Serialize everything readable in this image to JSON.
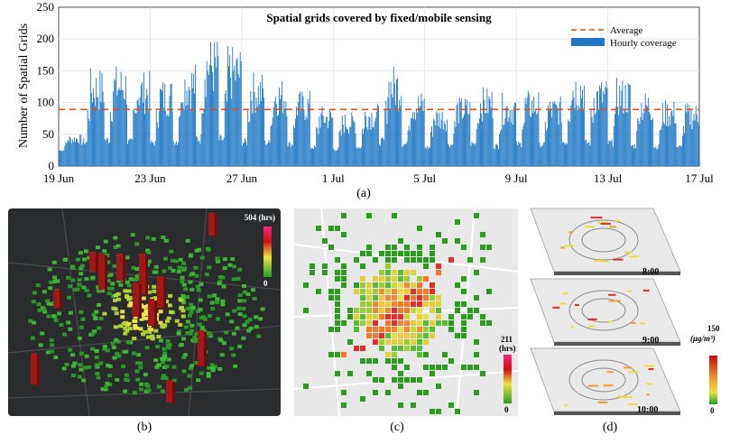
{
  "chart_data": {
    "type": "bar",
    "title": "Spatial grids covered by fixed/mobile sensing",
    "xlabel": "",
    "ylabel": "Number of Spatial Grids",
    "ylim": [
      0,
      250
    ],
    "yticks": [
      0,
      50,
      100,
      150,
      200,
      250
    ],
    "xtick_labels": [
      "19 Jun",
      "23 Jun",
      "27 Jun",
      "1 Jul",
      "5 Jul",
      "9 Jul",
      "13 Jul",
      "17 Jul"
    ],
    "xtick_days": [
      0,
      4,
      8,
      12,
      16,
      20,
      24,
      28
    ],
    "grid": true,
    "legend_position": "top-right",
    "legend": {
      "average": "Average",
      "hourly": "Hourly coverage"
    },
    "average": 89,
    "daily_peaks": [
      50,
      155,
      160,
      150,
      140,
      165,
      205,
      190,
      150,
      140,
      120,
      95,
      85,
      100,
      160,
      120,
      95,
      110,
      125,
      115,
      120,
      110,
      155,
      140,
      140,
      120,
      105,
      100,
      60
    ],
    "daily_troughs": [
      22,
      25,
      28,
      25,
      25,
      25,
      25,
      25,
      25,
      25,
      25,
      22,
      20,
      22,
      25,
      25,
      22,
      25,
      25,
      22,
      25,
      25,
      25,
      25,
      25,
      22,
      22,
      22,
      20
    ],
    "colors": {
      "bar": "#1f77c4",
      "average": "#d9531e"
    }
  },
  "caption_a": "(a)",
  "caption_b": "(b)",
  "caption_c": "(c)",
  "caption_d": "(d)",
  "panel_b": {
    "cbar_max": "504 (hrs)",
    "cbar_min": "0"
  },
  "panel_c": {
    "cbar_max": "211",
    "cbar_unit": "(hrs)",
    "cbar_min": "0"
  },
  "panel_d": {
    "cbar_max": "150",
    "cbar_unit": "(μg/m³)",
    "cbar_min": "0",
    "times": [
      "8:00",
      "9:00",
      "10:00"
    ]
  }
}
